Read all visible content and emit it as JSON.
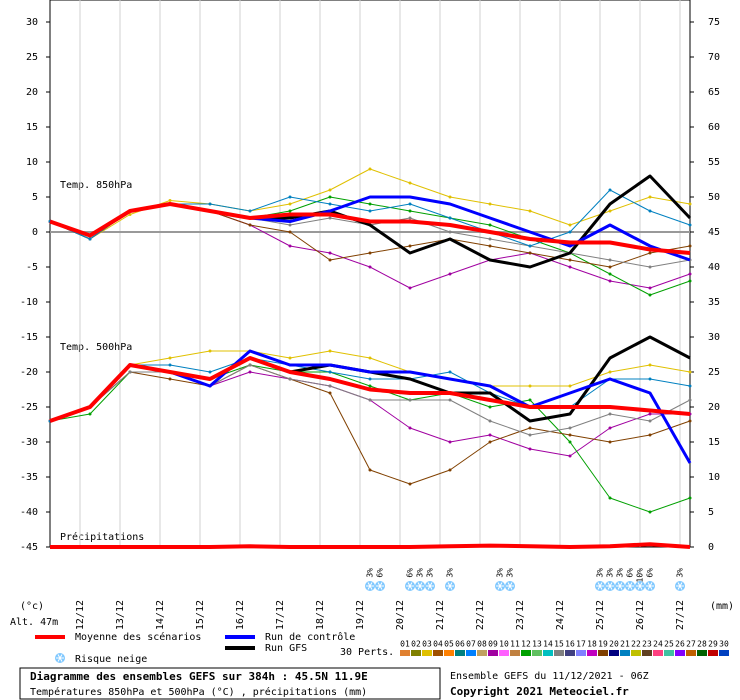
{
  "chart_data": {
    "type": "line",
    "xlim": [
      0,
      384
    ],
    "xticks": [
      {
        "value": 18,
        "label": "12/12"
      },
      {
        "value": 42,
        "label": "13/12"
      },
      {
        "value": 66,
        "label": "14/12"
      },
      {
        "value": 90,
        "label": "15/12"
      },
      {
        "value": 114,
        "label": "16/12"
      },
      {
        "value": 138,
        "label": "17/12"
      },
      {
        "value": 162,
        "label": "18/12"
      },
      {
        "value": 186,
        "label": "19/12"
      },
      {
        "value": 210,
        "label": "20/12"
      },
      {
        "value": 234,
        "label": "21/12"
      },
      {
        "value": 258,
        "label": "22/12"
      },
      {
        "value": 282,
        "label": "23/12"
      },
      {
        "value": 306,
        "label": "24/12"
      },
      {
        "value": 330,
        "label": "25/12"
      },
      {
        "value": 354,
        "label": "26/12"
      },
      {
        "value": 378,
        "label": "27/12"
      }
    ],
    "ylim": [
      -45,
      30
    ],
    "yticks": [
      30,
      25,
      20,
      15,
      10,
      5,
      0,
      -5,
      -10,
      -15,
      -20,
      -25,
      -30,
      -35,
      -40,
      -45
    ],
    "y2lim": [
      0,
      75
    ],
    "y2ticks": [
      75,
      70,
      65,
      60,
      55,
      50,
      45,
      40,
      35,
      30,
      25,
      20,
      15,
      10,
      5,
      0
    ],
    "y_label": "(°c)",
    "y2_label": "(mm)",
    "altitude": "Alt. 47m",
    "grid": true,
    "panel_labels": [
      "Temp. 850hPa",
      "Temp. 500hPa",
      "Précipitations"
    ],
    "x": [
      0,
      24,
      48,
      72,
      96,
      120,
      144,
      168,
      192,
      216,
      240,
      264,
      288,
      312,
      336,
      360,
      384
    ],
    "perturbations": [
      {
        "color": "#e0c000",
        "t850": [
          1.5,
          -1,
          2.5,
          4.5,
          4,
          3,
          4,
          6,
          9,
          7,
          5,
          4,
          3,
          1,
          3,
          5,
          4
        ],
        "t500": [
          -27,
          -25,
          -19,
          -18,
          -17,
          -17,
          -18,
          -17,
          -18,
          -20,
          -21,
          -22,
          -22,
          -22,
          -20,
          -19,
          -20
        ]
      },
      {
        "color": "#a000a0",
        "t850": [
          1.5,
          -1,
          3,
          4,
          3,
          1,
          -2,
          -3,
          -5,
          -8,
          -6,
          -4,
          -3,
          -5,
          -7,
          -8,
          -6
        ],
        "t500": [
          -27,
          -25,
          -20,
          -20,
          -22,
          -20,
          -21,
          -22,
          -24,
          -28,
          -30,
          -29,
          -31,
          -32,
          -28,
          -26,
          -26
        ]
      },
      {
        "color": "#00a000",
        "t850": [
          1.5,
          -1,
          3,
          4,
          3,
          2,
          3,
          5,
          4,
          3,
          2,
          1,
          -1,
          -3,
          -6,
          -9,
          -7
        ],
        "t500": [
          -27,
          -26,
          -20,
          -20,
          -21,
          -19,
          -20,
          -20,
          -22,
          -24,
          -23,
          -25,
          -24,
          -30,
          -38,
          -40,
          -38
        ]
      },
      {
        "color": "#804000",
        "t850": [
          1.5,
          -1,
          3,
          4,
          3,
          1,
          0,
          -4,
          -3,
          -2,
          -1,
          -2,
          -3,
          -4,
          -5,
          -3,
          -2
        ],
        "t500": [
          -27,
          -25,
          -20,
          -21,
          -22,
          -19,
          -21,
          -23,
          -34,
          -36,
          -34,
          -30,
          -28,
          -29,
          -30,
          -29,
          -27
        ]
      },
      {
        "color": "#808080",
        "t850": [
          1.5,
          -1,
          3,
          4,
          3,
          2,
          1,
          2,
          1,
          2,
          0,
          -1,
          -2,
          -3,
          -4,
          -5,
          -4
        ],
        "t500": [
          -27,
          -25,
          -20,
          -20,
          -22,
          -19,
          -21,
          -22,
          -24,
          -24,
          -24,
          -27,
          -29,
          -28,
          -26,
          -27,
          -24
        ]
      },
      {
        "color": "#0080c0",
        "t850": [
          1.5,
          -1,
          3,
          4,
          4,
          3,
          5,
          4,
          3,
          4,
          2,
          0,
          -2,
          0,
          6,
          3,
          1
        ],
        "t500": [
          -27,
          -25,
          -19,
          -19,
          -20,
          -18,
          -19,
          -20,
          -21,
          -21,
          -20,
          -23,
          -25,
          -25,
          -21,
          -21,
          -22
        ]
      }
    ],
    "series": [
      {
        "name": "Moyenne des scénarios",
        "color": "#ff0000",
        "width": 4,
        "t850": [
          1.5,
          -0.5,
          3,
          4,
          3,
          2,
          2.5,
          2.5,
          1.5,
          1.5,
          1,
          0,
          -1,
          -1.5,
          -1.5,
          -2.5,
          -3
        ],
        "t500": [
          -27,
          -25,
          -19,
          -20,
          -21,
          -18,
          -20,
          -21,
          -22.5,
          -23,
          -23,
          -24,
          -25,
          -25,
          -25,
          -25.5,
          -26
        ],
        "precip": [
          0,
          0,
          0,
          0,
          0,
          0.1,
          0,
          0,
          0,
          0,
          0.1,
          0.2,
          0.1,
          0,
          0.1,
          0.4,
          0
        ]
      },
      {
        "name": "Run de contrôle",
        "color": "#0000ff",
        "width": 3,
        "t850": [
          1.5,
          -0.5,
          3,
          4,
          3,
          2,
          1.5,
          3,
          5,
          5,
          4,
          2,
          0,
          -2,
          1,
          -2,
          -4
        ],
        "t500": [
          -27,
          -25,
          -19,
          -20,
          -22,
          -17,
          -19,
          -19,
          -20,
          -20,
          -21,
          -22,
          -25,
          -23,
          -21,
          -23,
          -33
        ]
      },
      {
        "name": "Run GFS",
        "color": "#000000",
        "width": 3,
        "t850": [
          1.5,
          -0.5,
          3,
          4,
          3,
          2,
          2,
          3,
          1,
          -3,
          -1,
          -4,
          -5,
          -3,
          4,
          8,
          2
        ],
        "t500": [
          -27,
          -25,
          -19,
          -20,
          -21,
          -18,
          -20,
          -19,
          -20,
          -21,
          -23,
          -23,
          -27,
          -26,
          -18,
          -15,
          -18
        ]
      }
    ],
    "snow_risk": {
      "label": "Risque neige",
      "points": [
        {
          "x": 192,
          "label": "3%"
        },
        {
          "x": 198,
          "label": "6%"
        },
        {
          "x": 216,
          "label": "6%"
        },
        {
          "x": 222,
          "label": "3%"
        },
        {
          "x": 228,
          "label": "3%"
        },
        {
          "x": 240,
          "label": "3%"
        },
        {
          "x": 270,
          "label": "3%"
        },
        {
          "x": 276,
          "label": "3%"
        },
        {
          "x": 330,
          "label": "3%"
        },
        {
          "x": 336,
          "label": "3%"
        },
        {
          "x": 342,
          "label": "3%"
        },
        {
          "x": 348,
          "label": "6%"
        },
        {
          "x": 354,
          "label": "10%"
        },
        {
          "x": 360,
          "label": "6%"
        },
        {
          "x": 378,
          "label": "3%"
        }
      ]
    },
    "members_label": "30 Perts.",
    "members": [
      {
        "label": "01",
        "color": "#e08030"
      },
      {
        "label": "02",
        "color": "#808000"
      },
      {
        "label": "03",
        "color": "#e0c000"
      },
      {
        "label": "04",
        "color": "#a05000"
      },
      {
        "label": "05",
        "color": "#ff8000"
      },
      {
        "label": "06",
        "color": "#008080"
      },
      {
        "label": "07",
        "color": "#0080ff"
      },
      {
        "label": "08",
        "color": "#c0a060"
      },
      {
        "label": "09",
        "color": "#a000a0"
      },
      {
        "label": "10",
        "color": "#ff60ff"
      },
      {
        "label": "11",
        "color": "#c08040"
      },
      {
        "label": "12",
        "color": "#00a000"
      },
      {
        "label": "13",
        "color": "#60c060"
      },
      {
        "label": "14",
        "color": "#00c0c0"
      },
      {
        "label": "15",
        "color": "#808080"
      },
      {
        "label": "16",
        "color": "#404080"
      },
      {
        "label": "17",
        "color": "#8080ff"
      },
      {
        "label": "18",
        "color": "#c000c0"
      },
      {
        "label": "19",
        "color": "#804000"
      },
      {
        "label": "20",
        "color": "#000080"
      },
      {
        "label": "21",
        "color": "#0080c0"
      },
      {
        "label": "22",
        "color": "#c0c000"
      },
      {
        "label": "23",
        "color": "#604020"
      },
      {
        "label": "24",
        "color": "#ff4080"
      },
      {
        "label": "25",
        "color": "#40c0a0"
      },
      {
        "label": "26",
        "color": "#8000ff"
      },
      {
        "label": "27",
        "color": "#c06000"
      },
      {
        "label": "28",
        "color": "#006000"
      },
      {
        "label": "29",
        "color": "#c00000"
      },
      {
        "label": "30",
        "color": "#0040c0"
      }
    ],
    "title": "Diagramme des ensembles GEFS sur 384h : 45.5N 11.9E",
    "subtitle": "Températures 850hPa et 500hPa (°C) , précipitations (mm)",
    "run_info": "Ensemble GEFS du 11/12/2021 - 06Z",
    "copyright": "Copyright 2021 Meteociel.fr"
  }
}
